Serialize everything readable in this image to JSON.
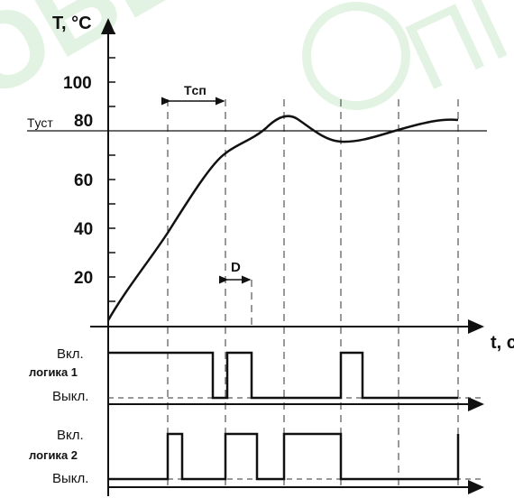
{
  "colors": {
    "line": "#111111",
    "watermark": "#d8efd8"
  },
  "watermark": {
    "left_text": "OBE",
    "logo_text": "ПГ"
  },
  "axes": {
    "y_title": "T, °C",
    "x_title": "t, c",
    "y_ticks": [
      "100",
      "80",
      "60",
      "40",
      "20"
    ],
    "setpoint_label": "Tуст"
  },
  "annotations": {
    "tsp": "Tсп",
    "d": "D"
  },
  "logic1": {
    "label": "логика 1",
    "on": "Вкл.",
    "off": "Выкл."
  },
  "logic2": {
    "label": "логика 2",
    "on": "Вкл.",
    "off": "Выкл."
  }
}
